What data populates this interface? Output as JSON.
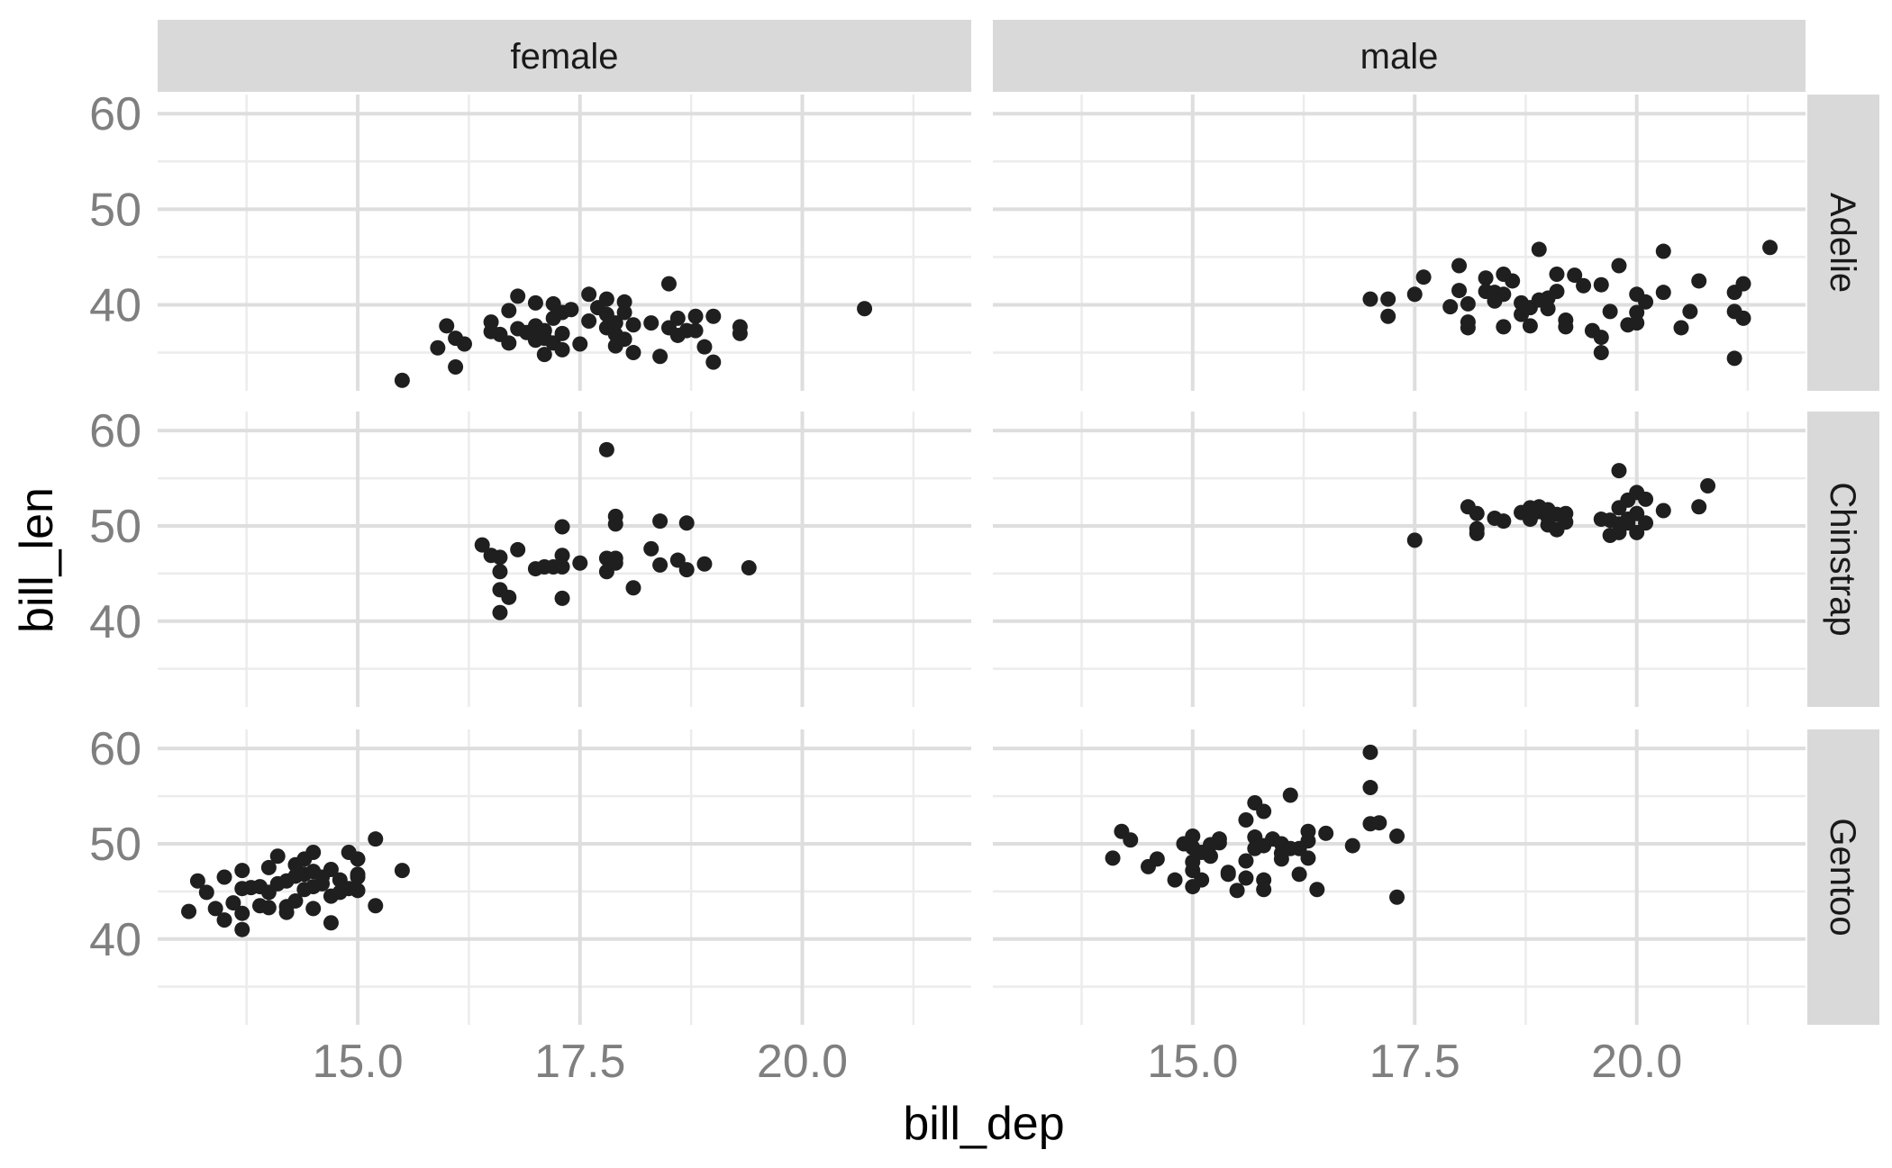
{
  "chart_data": {
    "type": "scatter",
    "xlabel": "bill_dep",
    "ylabel": "bill_len",
    "xlim": [
      12.75,
      21.9
    ],
    "ylim": [
      31,
      62
    ],
    "x_ticks": [
      15.0,
      17.5,
      20.0
    ],
    "x_tick_labels": [
      "15.0",
      "17.5",
      "20.0"
    ],
    "y_ticks": [
      40,
      50,
      60
    ],
    "y_tick_labels": [
      "40",
      "50",
      "60"
    ],
    "grid": true,
    "facet_columns": [
      "female",
      "male"
    ],
    "facet_rows": [
      "Adelie",
      "Chinstrap",
      "Gentoo"
    ],
    "panels": [
      {
        "row": "Adelie",
        "col": "female",
        "points": [
          [
            15.5,
            32.1
          ],
          [
            15.9,
            35.5
          ],
          [
            16.0,
            37.8
          ],
          [
            16.1,
            36.5
          ],
          [
            16.1,
            33.5
          ],
          [
            16.2,
            35.9
          ],
          [
            16.5,
            38.2
          ],
          [
            16.5,
            37.2
          ],
          [
            16.6,
            36.9
          ],
          [
            16.7,
            36.0
          ],
          [
            16.7,
            39.4
          ],
          [
            16.8,
            37.5
          ],
          [
            16.8,
            40.9
          ],
          [
            16.9,
            37.1
          ],
          [
            17.0,
            40.2
          ],
          [
            17.0,
            36.3
          ],
          [
            17.0,
            37.8
          ],
          [
            17.1,
            37.3
          ],
          [
            17.1,
            36.5
          ],
          [
            17.1,
            34.8
          ],
          [
            17.2,
            38.6
          ],
          [
            17.2,
            40.1
          ],
          [
            17.2,
            36.0
          ],
          [
            17.3,
            39.2
          ],
          [
            17.3,
            35.3
          ],
          [
            17.3,
            37.0
          ],
          [
            17.4,
            39.5
          ],
          [
            17.5,
            35.9
          ],
          [
            17.6,
            41.1
          ],
          [
            17.6,
            38.3
          ],
          [
            17.7,
            39.7
          ],
          [
            17.8,
            40.6
          ],
          [
            17.8,
            39.0
          ],
          [
            17.8,
            37.6
          ],
          [
            17.9,
            38.1
          ],
          [
            17.9,
            36.9
          ],
          [
            17.9,
            35.7
          ],
          [
            18.0,
            39.2
          ],
          [
            18.0,
            40.3
          ],
          [
            18.0,
            36.4
          ],
          [
            18.1,
            37.9
          ],
          [
            18.1,
            35.0
          ],
          [
            18.3,
            38.1
          ],
          [
            18.4,
            34.6
          ],
          [
            18.5,
            37.6
          ],
          [
            18.5,
            42.2
          ],
          [
            18.6,
            36.8
          ],
          [
            18.6,
            38.6
          ],
          [
            18.7,
            37.3
          ],
          [
            18.8,
            38.8
          ],
          [
            18.8,
            37.3
          ],
          [
            18.9,
            35.6
          ],
          [
            19.0,
            38.8
          ],
          [
            19.0,
            34.0
          ],
          [
            19.3,
            37.0
          ],
          [
            19.3,
            37.7
          ],
          [
            20.7,
            39.6
          ]
        ]
      },
      {
        "row": "Adelie",
        "col": "male",
        "points": [
          [
            17.0,
            40.6
          ],
          [
            17.2,
            38.8
          ],
          [
            17.2,
            40.6
          ],
          [
            17.5,
            41.1
          ],
          [
            17.6,
            42.9
          ],
          [
            17.9,
            39.8
          ],
          [
            18.0,
            41.5
          ],
          [
            18.0,
            44.1
          ],
          [
            18.1,
            40.1
          ],
          [
            18.1,
            38.2
          ],
          [
            18.1,
            37.6
          ],
          [
            18.3,
            41.4
          ],
          [
            18.3,
            42.8
          ],
          [
            18.4,
            41.3
          ],
          [
            18.4,
            40.4
          ],
          [
            18.5,
            43.2
          ],
          [
            18.5,
            41.1
          ],
          [
            18.5,
            37.7
          ],
          [
            18.6,
            42.5
          ],
          [
            18.7,
            40.2
          ],
          [
            18.7,
            39.0
          ],
          [
            18.8,
            37.8
          ],
          [
            18.8,
            39.7
          ],
          [
            18.9,
            45.8
          ],
          [
            18.9,
            40.5
          ],
          [
            19.0,
            40.7
          ],
          [
            19.0,
            39.6
          ],
          [
            19.1,
            43.2
          ],
          [
            19.1,
            41.4
          ],
          [
            19.2,
            38.4
          ],
          [
            19.2,
            37.7
          ],
          [
            19.3,
            43.1
          ],
          [
            19.4,
            42.0
          ],
          [
            19.5,
            37.3
          ],
          [
            19.6,
            36.6
          ],
          [
            19.6,
            35.0
          ],
          [
            19.6,
            42.1
          ],
          [
            19.7,
            39.3
          ],
          [
            19.8,
            44.1
          ],
          [
            19.9,
            37.9
          ],
          [
            20.0,
            39.2
          ],
          [
            20.0,
            41.1
          ],
          [
            20.0,
            38.1
          ],
          [
            20.1,
            40.3
          ],
          [
            20.3,
            45.6
          ],
          [
            20.3,
            41.3
          ],
          [
            20.5,
            37.6
          ],
          [
            20.6,
            39.3
          ],
          [
            20.7,
            42.5
          ],
          [
            21.1,
            41.3
          ],
          [
            21.1,
            39.3
          ],
          [
            21.1,
            34.4
          ],
          [
            21.2,
            42.2
          ],
          [
            21.2,
            38.6
          ],
          [
            21.5,
            46.0
          ]
        ]
      },
      {
        "row": "Chinstrap",
        "col": "female",
        "points": [
          [
            16.4,
            48.0
          ],
          [
            16.5,
            46.9
          ],
          [
            16.6,
            46.7
          ],
          [
            16.6,
            45.2
          ],
          [
            16.6,
            43.3
          ],
          [
            16.6,
            40.9
          ],
          [
            16.7,
            42.5
          ],
          [
            16.8,
            47.5
          ],
          [
            17.0,
            45.5
          ],
          [
            17.1,
            45.7
          ],
          [
            17.2,
            45.7
          ],
          [
            17.3,
            49.9
          ],
          [
            17.3,
            46.9
          ],
          [
            17.3,
            45.7
          ],
          [
            17.3,
            42.4
          ],
          [
            17.5,
            46.1
          ],
          [
            17.8,
            58.0
          ],
          [
            17.8,
            46.6
          ],
          [
            17.8,
            45.2
          ],
          [
            17.9,
            51.0
          ],
          [
            17.9,
            50.2
          ],
          [
            17.9,
            46.6
          ],
          [
            17.9,
            46.1
          ],
          [
            18.1,
            43.5
          ],
          [
            18.3,
            47.6
          ],
          [
            18.4,
            50.5
          ],
          [
            18.4,
            45.9
          ],
          [
            18.6,
            46.4
          ],
          [
            18.7,
            50.3
          ],
          [
            18.7,
            45.4
          ],
          [
            18.9,
            46.0
          ],
          [
            19.4,
            45.6
          ]
        ]
      },
      {
        "row": "Chinstrap",
        "col": "male",
        "points": [
          [
            17.5,
            48.5
          ],
          [
            18.1,
            52.0
          ],
          [
            18.2,
            49.2
          ],
          [
            18.2,
            51.3
          ],
          [
            18.2,
            49.7
          ],
          [
            18.4,
            50.8
          ],
          [
            18.5,
            50.5
          ],
          [
            18.7,
            51.4
          ],
          [
            18.8,
            50.7
          ],
          [
            18.8,
            51.9
          ],
          [
            18.9,
            51.5
          ],
          [
            18.9,
            52.0
          ],
          [
            19.0,
            50.1
          ],
          [
            19.0,
            50.9
          ],
          [
            19.0,
            51.7
          ],
          [
            19.1,
            49.6
          ],
          [
            19.1,
            51.2
          ],
          [
            19.2,
            50.4
          ],
          [
            19.2,
            51.3
          ],
          [
            19.6,
            50.7
          ],
          [
            19.7,
            49.0
          ],
          [
            19.7,
            50.6
          ],
          [
            19.8,
            51.9
          ],
          [
            19.8,
            55.8
          ],
          [
            19.8,
            50.2
          ],
          [
            19.8,
            49.3
          ],
          [
            19.9,
            50.7
          ],
          [
            19.9,
            50.3
          ],
          [
            19.9,
            52.7
          ],
          [
            20.0,
            53.5
          ],
          [
            20.0,
            51.3
          ],
          [
            20.1,
            52.8
          ],
          [
            20.1,
            50.3
          ],
          [
            20.0,
            49.3
          ],
          [
            20.3,
            51.6
          ],
          [
            20.7,
            52.0
          ],
          [
            20.8,
            54.2
          ]
        ]
      },
      {
        "row": "Gentoo",
        "col": "female",
        "points": [
          [
            13.1,
            42.9
          ],
          [
            13.2,
            46.1
          ],
          [
            13.3,
            44.9
          ],
          [
            13.4,
            43.2
          ],
          [
            13.5,
            46.5
          ],
          [
            13.5,
            42.0
          ],
          [
            13.6,
            43.8
          ],
          [
            13.7,
            45.3
          ],
          [
            13.7,
            47.2
          ],
          [
            13.7,
            41.0
          ],
          [
            13.7,
            42.7
          ],
          [
            13.8,
            45.4
          ],
          [
            13.9,
            43.5
          ],
          [
            13.9,
            45.5
          ],
          [
            14.0,
            44.9
          ],
          [
            14.0,
            47.5
          ],
          [
            14.0,
            43.3
          ],
          [
            14.1,
            45.8
          ],
          [
            14.1,
            48.7
          ],
          [
            14.2,
            46.1
          ],
          [
            14.2,
            43.4
          ],
          [
            14.2,
            42.8
          ],
          [
            14.3,
            46.6
          ],
          [
            14.3,
            47.8
          ],
          [
            14.3,
            44.0
          ],
          [
            14.4,
            48.4
          ],
          [
            14.4,
            45.2
          ],
          [
            14.4,
            46.8
          ],
          [
            14.5,
            45.5
          ],
          [
            14.5,
            47.1
          ],
          [
            14.5,
            49.1
          ],
          [
            14.5,
            43.2
          ],
          [
            14.6,
            46.5
          ],
          [
            14.6,
            45.8
          ],
          [
            14.7,
            47.3
          ],
          [
            14.7,
            44.5
          ],
          [
            14.7,
            41.7
          ],
          [
            14.8,
            46.2
          ],
          [
            14.8,
            44.9
          ],
          [
            14.9,
            45.3
          ],
          [
            14.9,
            49.1
          ],
          [
            15.0,
            46.5
          ],
          [
            15.0,
            45.1
          ],
          [
            15.0,
            46.8
          ],
          [
            15.0,
            48.4
          ],
          [
            15.2,
            50.5
          ],
          [
            15.2,
            43.5
          ],
          [
            15.5,
            47.2
          ]
        ]
      },
      {
        "row": "Gentoo",
        "col": "male",
        "points": [
          [
            14.1,
            48.5
          ],
          [
            14.2,
            51.3
          ],
          [
            14.3,
            50.4
          ],
          [
            14.5,
            47.6
          ],
          [
            14.6,
            48.4
          ],
          [
            14.8,
            46.2
          ],
          [
            14.9,
            50.0
          ],
          [
            15.0,
            45.5
          ],
          [
            15.0,
            47.2
          ],
          [
            15.0,
            49.6
          ],
          [
            15.0,
            50.8
          ],
          [
            15.0,
            48.1
          ],
          [
            15.1,
            49.1
          ],
          [
            15.1,
            46.2
          ],
          [
            15.2,
            49.9
          ],
          [
            15.2,
            48.7
          ],
          [
            15.3,
            50.1
          ],
          [
            15.3,
            50.5
          ],
          [
            15.4,
            47.0
          ],
          [
            15.4,
            46.8
          ],
          [
            15.5,
            45.1
          ],
          [
            15.6,
            48.2
          ],
          [
            15.6,
            46.4
          ],
          [
            15.6,
            52.5
          ],
          [
            15.7,
            50.7
          ],
          [
            15.7,
            54.3
          ],
          [
            15.7,
            49.5
          ],
          [
            15.8,
            53.4
          ],
          [
            15.8,
            49.8
          ],
          [
            15.8,
            46.2
          ],
          [
            15.8,
            45.2
          ],
          [
            15.9,
            50.5
          ],
          [
            16.0,
            50.0
          ],
          [
            16.0,
            49.0
          ],
          [
            16.0,
            48.4
          ],
          [
            16.1,
            55.1
          ],
          [
            16.1,
            49.5
          ],
          [
            16.2,
            46.8
          ],
          [
            16.2,
            49.5
          ],
          [
            16.3,
            48.5
          ],
          [
            16.3,
            50.3
          ],
          [
            16.3,
            51.3
          ],
          [
            16.4,
            45.2
          ],
          [
            16.5,
            51.1
          ],
          [
            16.8,
            49.8
          ],
          [
            17.0,
            59.6
          ],
          [
            17.0,
            55.9
          ],
          [
            17.0,
            52.1
          ],
          [
            17.1,
            52.2
          ],
          [
            17.3,
            50.8
          ],
          [
            17.3,
            44.4
          ]
        ]
      }
    ]
  }
}
